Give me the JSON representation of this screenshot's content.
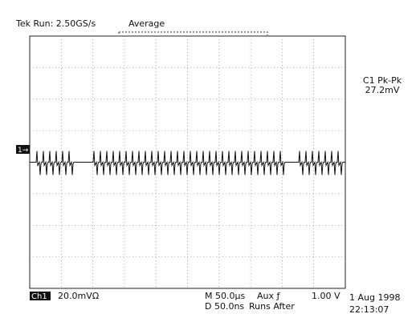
{
  "header": {
    "status": "Tek Run: 2.50GS/s",
    "mode": "Average"
  },
  "measurement": {
    "label": "C1 Pk-Pk",
    "value": "27.2mV"
  },
  "channel_marker": "1→",
  "footer": {
    "channel": "Ch1",
    "scale": "20.0mVΩ",
    "timebase": "M 50.0µs",
    "trigger_source": "Aux ƒ",
    "trigger_level": "1.00 V",
    "delay": "D 50.0ns",
    "trigger_mode": "Runs After",
    "date": "1 Aug 1998",
    "time": "22:13:07"
  }
}
